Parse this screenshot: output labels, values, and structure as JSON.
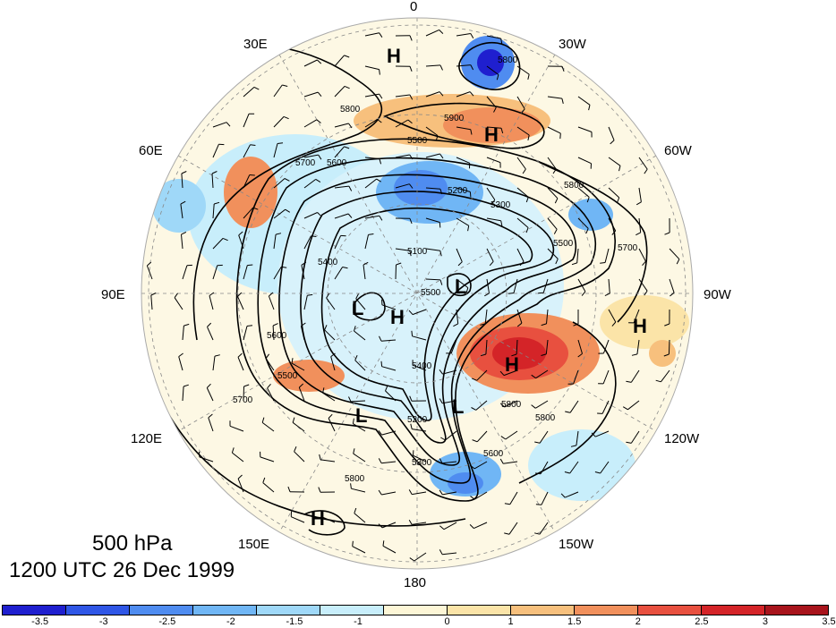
{
  "map": {
    "projection": "north polar stereographic",
    "longitude_labels": [
      "0",
      "30W",
      "60W",
      "90W",
      "120W",
      "150W",
      "180",
      "150E",
      "120E",
      "90E",
      "60E",
      "30E"
    ],
    "contour_labels": [
      "5800",
      "5900",
      "5800",
      "5500",
      "5600",
      "5700",
      "5300",
      "5200",
      "5100",
      "5400",
      "5500",
      "5400",
      "5500",
      "5600",
      "5200",
      "5300",
      "5700",
      "5800",
      "5600",
      "5800",
      "5800",
      "5800",
      "5500",
      "5700"
    ],
    "pressure_systems": [
      {
        "type": "H"
      },
      {
        "type": "H"
      },
      {
        "type": "L"
      },
      {
        "type": "H"
      },
      {
        "type": "L"
      },
      {
        "type": "H"
      },
      {
        "type": "H"
      },
      {
        "type": "L"
      },
      {
        "type": "L"
      },
      {
        "type": "H"
      }
    ]
  },
  "caption": {
    "level": "500 hPa",
    "time": "1200 UTC 26 Dec 1999"
  },
  "colorbar": {
    "colors": [
      "#1f1fcf",
      "#2f56e6",
      "#4f8cf0",
      "#70b6f5",
      "#9fd8f8",
      "#c8eefb",
      "#fdf6d6",
      "#fbe4a8",
      "#f7c07d",
      "#f1905c",
      "#e8503f",
      "#d42428",
      "#a8141c"
    ],
    "tick_labels": [
      "-3.5",
      "-3",
      "-2.5",
      "-2",
      "-1.5",
      "-1",
      "0",
      "1",
      "1.5",
      "2",
      "2.5",
      "3",
      "3.5"
    ]
  }
}
